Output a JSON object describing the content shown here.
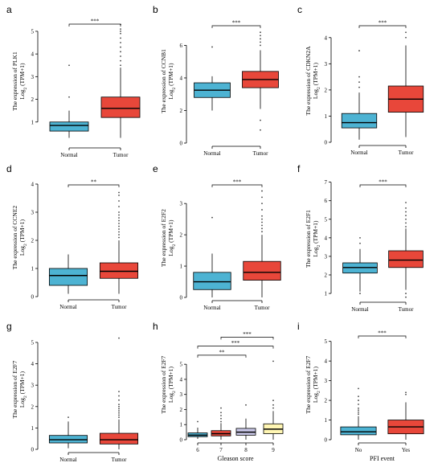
{
  "colors": {
    "normal": "#4db3d3",
    "tumor": "#e8473a",
    "g6": "#4db3d3",
    "g7": "#e8473a",
    "g8": "#c8c6e6",
    "g9": "#fff6b3",
    "axis": "#000000",
    "outlier": "#444444"
  },
  "chart_data": [
    {
      "type": "box",
      "panel": "a",
      "ylabel_top": "The expression  of PLK1",
      "ylabel_bottom": "Log2 (TPM+1)",
      "xlabel": "",
      "ylim": [
        0,
        5.6
      ],
      "yticks": [
        1,
        2,
        3,
        4,
        5
      ],
      "groups": [
        {
          "name": "Normal",
          "color_key": "normal",
          "min": 0.3,
          "q1": 0.6,
          "median": 0.85,
          "q3": 1.0,
          "max": 1.5,
          "outliers": [
            2.1,
            3.5
          ]
        },
        {
          "name": "Tumor",
          "color_key": "tumor",
          "min": 0.3,
          "q1": 1.2,
          "median": 1.6,
          "q3": 2.1,
          "max": 3.4,
          "outliers": [
            3.5,
            3.7,
            3.9,
            4.1,
            4.3,
            4.5,
            4.7,
            4.9,
            5.0,
            5.1,
            5.3
          ]
        }
      ],
      "comparisons": [
        {
          "from": 0,
          "to": 1,
          "label": "***"
        }
      ]
    },
    {
      "type": "box",
      "panel": "b",
      "ylabel_top": "The expression  of CCNB1",
      "ylabel_bottom": "Log2 (TPM+1)",
      "xlabel": "",
      "ylim": [
        0,
        7.6
      ],
      "yticks": [
        0,
        2,
        4,
        6
      ],
      "groups": [
        {
          "name": "Normal",
          "color_key": "normal",
          "min": 2.0,
          "q1": 2.8,
          "median": 3.25,
          "q3": 3.7,
          "max": 4.1,
          "outliers": [
            5.9
          ]
        },
        {
          "name": "Tumor",
          "color_key": "tumor",
          "min": 2.1,
          "q1": 3.4,
          "median": 3.9,
          "q3": 4.4,
          "max": 5.7,
          "outliers": [
            0.8,
            1.4,
            6.0,
            6.2,
            6.4,
            6.6,
            6.8
          ]
        }
      ],
      "comparisons": [
        {
          "from": 0,
          "to": 1,
          "label": "***"
        }
      ]
    },
    {
      "type": "box",
      "panel": "c",
      "ylabel_top": "The expression  of CDKN2A",
      "ylabel_bottom": "Log2 (TPM+1)",
      "xlabel": "",
      "ylim": [
        0,
        4.7
      ],
      "yticks": [
        0,
        1,
        2,
        3,
        4
      ],
      "groups": [
        {
          "name": "Normal",
          "color_key": "normal",
          "min": 0.1,
          "q1": 0.55,
          "median": 0.75,
          "q3": 1.1,
          "max": 1.9,
          "outliers": [
            2.1,
            2.3,
            2.5,
            3.5
          ]
        },
        {
          "name": "Tumor",
          "color_key": "tumor",
          "min": 0.2,
          "q1": 1.15,
          "median": 1.65,
          "q3": 2.15,
          "max": 3.7,
          "outliers": [
            4.0,
            4.2
          ]
        }
      ],
      "comparisons": [
        {
          "from": 0,
          "to": 1,
          "label": "***"
        }
      ]
    },
    {
      "type": "box",
      "panel": "d",
      "ylabel_top": "The expression  of CCNE2",
      "ylabel_bottom": "Log2 (TPM+1)",
      "xlabel": "",
      "ylim": [
        0,
        4.2
      ],
      "yticks": [
        0,
        1,
        2,
        3,
        4
      ],
      "groups": [
        {
          "name": "Normal",
          "color_key": "normal",
          "min": 0.1,
          "q1": 0.4,
          "median": 0.75,
          "q3": 1.0,
          "max": 1.5,
          "outliers": []
        },
        {
          "name": "Tumor",
          "color_key": "tumor",
          "min": 0.1,
          "q1": 0.65,
          "median": 0.9,
          "q3": 1.2,
          "max": 2.0,
          "outliers": [
            2.1,
            2.2,
            2.3,
            2.4,
            2.5,
            2.6,
            2.7,
            2.8,
            2.9,
            3.0,
            3.2,
            3.4,
            3.6,
            3.7
          ]
        }
      ],
      "comparisons": [
        {
          "from": 0,
          "to": 1,
          "label": "**"
        }
      ]
    },
    {
      "type": "box",
      "panel": "e",
      "ylabel_top": "The expression  of E2F2",
      "ylabel_bottom": "Log2 (TPM+1)",
      "xlabel": "",
      "ylim": [
        0,
        3.8
      ],
      "yticks": [
        0,
        1,
        2,
        3
      ],
      "groups": [
        {
          "name": "Normal",
          "color_key": "normal",
          "min": 0.0,
          "q1": 0.25,
          "median": 0.5,
          "q3": 0.8,
          "max": 1.4,
          "outliers": [
            2.55
          ]
        },
        {
          "name": "Tumor",
          "color_key": "tumor",
          "min": 0.0,
          "q1": 0.55,
          "median": 0.8,
          "q3": 1.15,
          "max": 2.0,
          "outliers": [
            2.1,
            2.2,
            2.3,
            2.4,
            2.5,
            2.6,
            2.8,
            3.0,
            3.2,
            3.4
          ]
        }
      ],
      "comparisons": [
        {
          "from": 0,
          "to": 1,
          "label": "***"
        }
      ]
    },
    {
      "type": "box",
      "panel": "f",
      "ylabel_top": "The expression  of E2F1",
      "ylabel_bottom": "Log2 (TPM+1)",
      "xlabel": "",
      "ylim": [
        0.7,
        7.2
      ],
      "yticks": [
        1,
        2,
        3,
        4,
        5,
        6,
        7
      ],
      "groups": [
        {
          "name": "Normal",
          "color_key": "normal",
          "min": 1.1,
          "q1": 2.1,
          "median": 2.4,
          "q3": 2.65,
          "max": 3.4,
          "outliers": [
            1.0,
            3.7,
            4.0
          ]
        },
        {
          "name": "Tumor",
          "color_key": "tumor",
          "min": 1.2,
          "q1": 2.4,
          "median": 2.8,
          "q3": 3.3,
          "max": 4.5,
          "outliers": [
            0.8,
            1.0,
            4.6,
            4.8,
            5.0,
            5.2,
            5.4,
            5.6,
            5.9
          ]
        }
      ],
      "comparisons": [
        {
          "from": 0,
          "to": 1,
          "label": "***"
        }
      ]
    },
    {
      "type": "box",
      "panel": "g",
      "ylabel_top": "The expression  of E2F7",
      "ylabel_bottom": "Log2 (TPM+1)",
      "xlabel": "",
      "ylim": [
        0,
        5.6
      ],
      "yticks": [
        0,
        1,
        2,
        3,
        4,
        5
      ],
      "groups": [
        {
          "name": "Normal",
          "color_key": "normal",
          "min": 0.05,
          "q1": 0.3,
          "median": 0.45,
          "q3": 0.65,
          "max": 1.3,
          "outliers": [
            1.5
          ]
        },
        {
          "name": "Tumor",
          "color_key": "tumor",
          "min": 0.0,
          "q1": 0.25,
          "median": 0.45,
          "q3": 0.75,
          "max": 1.4,
          "outliers": [
            1.5,
            1.6,
            1.7,
            1.8,
            1.9,
            2.0,
            2.1,
            2.3,
            2.5,
            2.7,
            5.2
          ]
        }
      ],
      "comparisons": []
    },
    {
      "type": "box",
      "panel": "h",
      "ylabel_top": "The expression  of E2F7",
      "ylabel_bottom": "Log2 (TPM+1)",
      "xlabel": "Gleason score",
      "ylim": [
        0,
        7.3
      ],
      "yticks": [
        0,
        1,
        2,
        3,
        4,
        5
      ],
      "groups": [
        {
          "name": "6",
          "color_key": "g6",
          "min": 0.05,
          "q1": 0.2,
          "median": 0.3,
          "q3": 0.45,
          "max": 0.8,
          "outliers": [
            1.2
          ]
        },
        {
          "name": "7",
          "color_key": "g7",
          "min": 0.0,
          "q1": 0.25,
          "median": 0.4,
          "q3": 0.6,
          "max": 1.1,
          "outliers": [
            1.2,
            1.4,
            1.6,
            1.8,
            2.1
          ]
        },
        {
          "name": "8",
          "color_key": "g8",
          "min": 0.0,
          "q1": 0.3,
          "median": 0.5,
          "q3": 0.75,
          "max": 1.4,
          "outliers": [
            2.3
          ]
        },
        {
          "name": "9",
          "color_key": "g9",
          "min": 0.0,
          "q1": 0.4,
          "median": 0.7,
          "q3": 1.05,
          "max": 1.9,
          "outliers": [
            2.1,
            2.3,
            2.6,
            5.2
          ]
        }
      ],
      "comparisons": [
        {
          "from": 0,
          "to": 2,
          "label": "**",
          "level": 5.6
        },
        {
          "from": 0,
          "to": 3,
          "label": "***",
          "level": 6.2
        },
        {
          "from": 1,
          "to": 3,
          "label": "***",
          "level": 6.8
        }
      ]
    },
    {
      "type": "box",
      "panel": "i",
      "ylabel_top": "The expression  of E2F7",
      "ylabel_bottom": "Log2 (TPM+1)",
      "xlabel": "PFI event",
      "ylim": [
        0,
        5.6
      ],
      "yticks": [
        0,
        1,
        2,
        3,
        4,
        5
      ],
      "groups": [
        {
          "name": "No",
          "color_key": "normal",
          "min": 0.0,
          "q1": 0.25,
          "median": 0.4,
          "q3": 0.65,
          "max": 1.2,
          "outliers": [
            1.3,
            1.4,
            1.5,
            1.6,
            1.8,
            2.0,
            2.2,
            2.6
          ]
        },
        {
          "name": "Yes",
          "color_key": "tumor",
          "min": 0.0,
          "q1": 0.3,
          "median": 0.65,
          "q3": 1.0,
          "max": 1.9,
          "outliers": [
            2.3,
            2.4
          ]
        }
      ],
      "comparisons": [
        {
          "from": 0,
          "to": 1,
          "label": "***"
        }
      ]
    }
  ]
}
